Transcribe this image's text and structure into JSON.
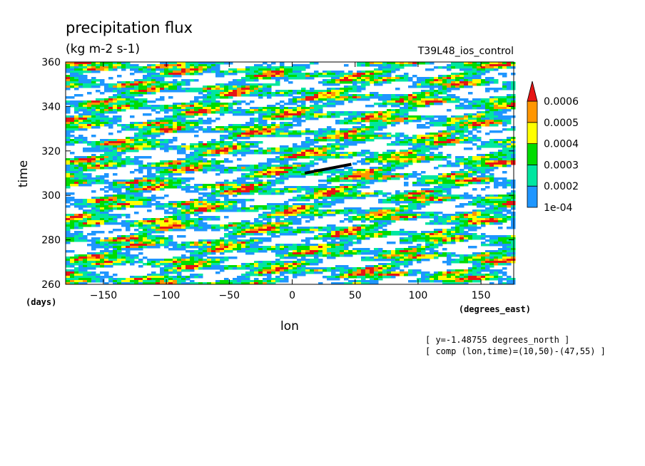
{
  "chart_data": {
    "type": "heatmap",
    "title": "precipitation flux",
    "units": "(kg m-2 s-1)",
    "experiment": "T39L48_ios_control",
    "xlabel": "lon",
    "x_units": "(degrees_east)",
    "ylabel": "time",
    "y_units": "(days)",
    "xlim": [
      -180,
      176
    ],
    "ylim": [
      260,
      360
    ],
    "x_ticks": [
      -150,
      -100,
      -50,
      0,
      50,
      100,
      150
    ],
    "y_ticks": [
      260,
      280,
      300,
      320,
      340,
      360
    ],
    "colorbar": {
      "levels": [
        "1e-04",
        "0.0002",
        "0.0003",
        "0.0004",
        "0.0005",
        "0.0006"
      ],
      "colors": [
        "#1e96ff",
        "#00e6a0",
        "#00dc00",
        "#ffff00",
        "#ff9600",
        "#e61414"
      ],
      "extend": "max"
    },
    "annotations": [
      "[ y=-1.48755 degrees_north ]",
      "[ comp (lon,time)=(10,50)-(47,55) ]"
    ],
    "composite_segment": {
      "lon": [
        10,
        47
      ],
      "time": [
        310,
        314
      ]
    }
  }
}
